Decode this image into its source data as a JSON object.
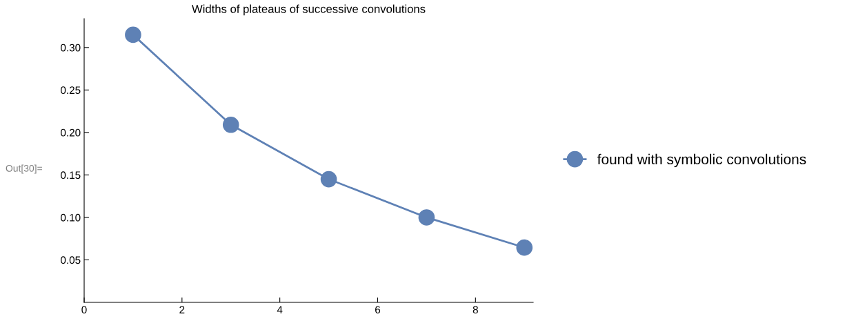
{
  "chart_data": {
    "type": "line",
    "title": "Widths of plateaus of successive convolutions",
    "x": [
      1,
      3,
      5,
      7,
      9
    ],
    "series": [
      {
        "name": "found with symbolic convolutions",
        "color": "#5e81b5",
        "values": [
          0.315,
          0.209,
          0.145,
          0.1,
          0.0645
        ]
      }
    ],
    "xlim": [
      0,
      9.18
    ],
    "xticks": [
      0,
      2,
      4,
      6,
      8
    ],
    "ylim": [
      0,
      0.334
    ],
    "yticks": [
      {
        "value": 0.05,
        "label": "0.05"
      },
      {
        "value": 0.1,
        "label": "0.10"
      },
      {
        "value": 0.15,
        "label": "0.15"
      },
      {
        "value": 0.2,
        "label": "0.20"
      },
      {
        "value": 0.25,
        "label": "0.25"
      },
      {
        "value": 0.3,
        "label": "0.30"
      }
    ],
    "annotations": [
      "Out[30]="
    ],
    "legend": "right",
    "marker": "circle",
    "line_style": "solid",
    "grid": false
  }
}
